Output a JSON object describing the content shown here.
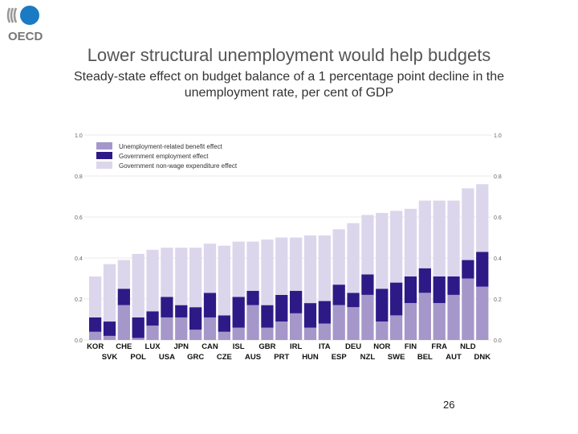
{
  "logo_text": "OECD",
  "title": "Lower structural unemployment would help budgets",
  "subtitle": "Steady-state effect on budget balance of a 1 percentage point decline in the unemployment rate, per cent of GDP",
  "page_number": "26",
  "chart_data": {
    "type": "bar",
    "stacked": true,
    "categories": [
      "KOR",
      "SVK",
      "CHE",
      "POL",
      "LUX",
      "USA",
      "JPN",
      "GRC",
      "CAN",
      "CZE",
      "ISL",
      "AUS",
      "GBR",
      "PRT",
      "IRL",
      "HUN",
      "ITA",
      "ESP",
      "DEU",
      "NZL",
      "NOR",
      "SWE",
      "FIN",
      "BEL",
      "FRA",
      "AUT",
      "NLD",
      "DNK"
    ],
    "series": [
      {
        "name": "Unemployment-related benefit effect",
        "color": "#a597c9",
        "values": [
          0.04,
          0.02,
          0.17,
          0.01,
          0.07,
          0.11,
          0.11,
          0.05,
          0.11,
          0.04,
          0.06,
          0.17,
          0.06,
          0.09,
          0.13,
          0.06,
          0.08,
          0.17,
          0.16,
          0.22,
          0.09,
          0.12,
          0.18,
          0.23,
          0.18,
          0.22,
          0.3,
          0.26
        ]
      },
      {
        "name": "Government employment effect",
        "color": "#2e1a87",
        "values": [
          0.07,
          0.07,
          0.08,
          0.1,
          0.07,
          0.1,
          0.06,
          0.11,
          0.12,
          0.08,
          0.15,
          0.07,
          0.11,
          0.13,
          0.11,
          0.12,
          0.11,
          0.1,
          0.07,
          0.1,
          0.16,
          0.16,
          0.13,
          0.12,
          0.13,
          0.09,
          0.09,
          0.17
        ]
      },
      {
        "name": "Government non-wage expenditure effect",
        "color": "#dcd6ec",
        "values": [
          0.2,
          0.28,
          0.14,
          0.31,
          0.3,
          0.24,
          0.28,
          0.29,
          0.24,
          0.34,
          0.27,
          0.24,
          0.32,
          0.28,
          0.26,
          0.33,
          0.32,
          0.27,
          0.34,
          0.29,
          0.37,
          0.35,
          0.33,
          0.33,
          0.37,
          0.37,
          0.35,
          0.33
        ]
      }
    ],
    "ylim": [
      0,
      1.0
    ],
    "yticks": [
      "0.0",
      "0.2",
      "0.4",
      "0.6",
      "0.8",
      "1.0"
    ],
    "xlabel": "",
    "ylabel": "",
    "grid": true,
    "legend_position": "top-left",
    "axis_sides": "left and right"
  }
}
